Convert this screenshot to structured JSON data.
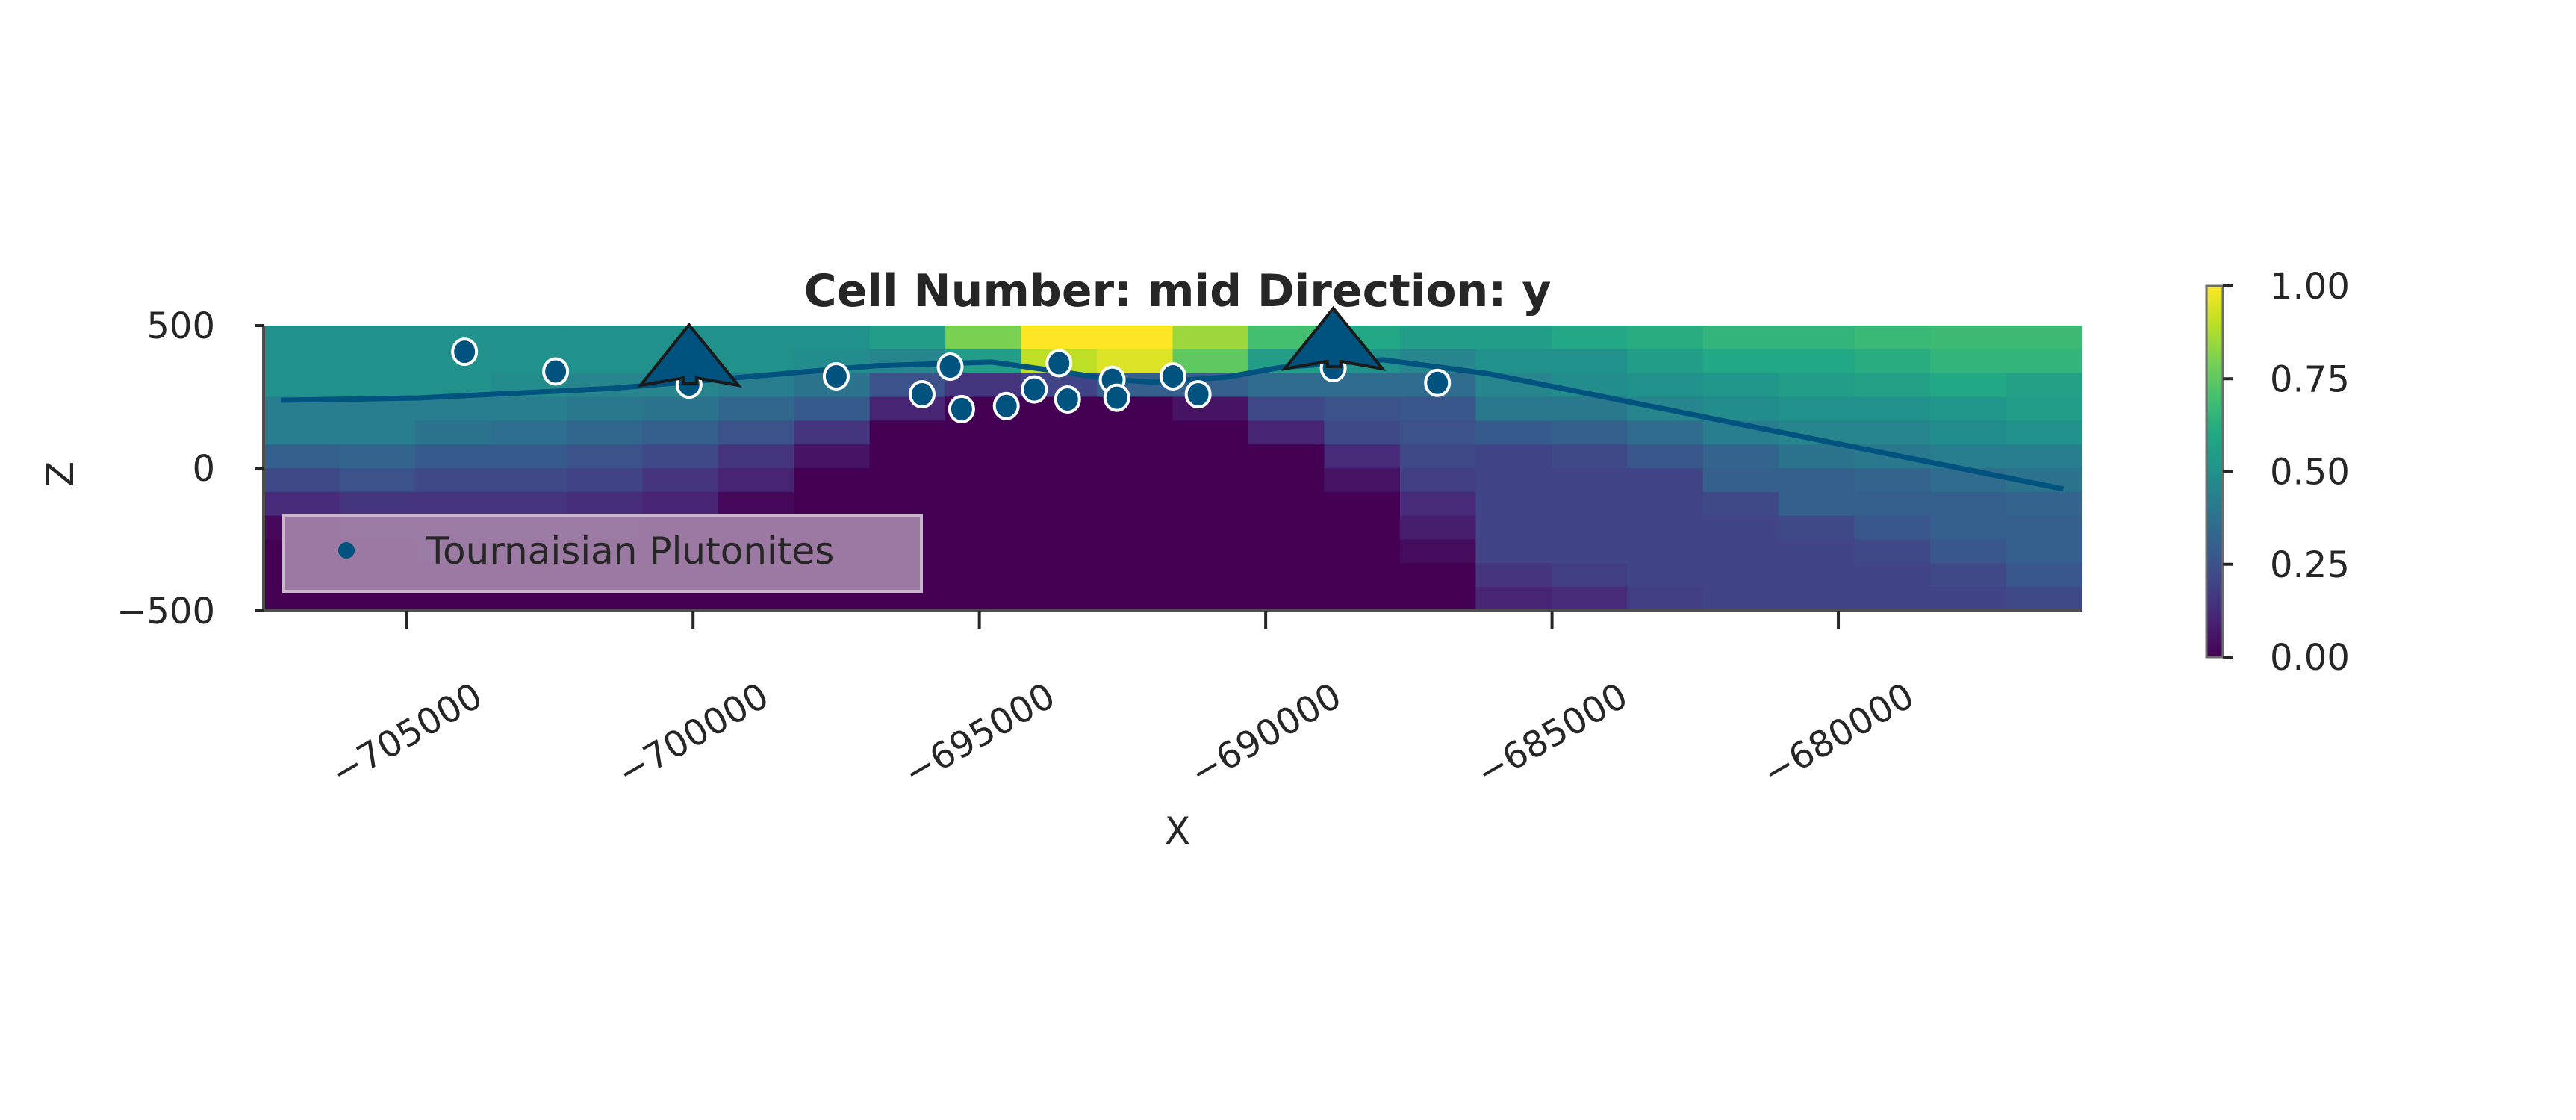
{
  "chart_data": {
    "type": "heatmap",
    "title": "Cell Number: mid Direction: y",
    "xlabel": "X",
    "ylabel": "Z",
    "xlim": [
      -707500,
      -675750
    ],
    "ylim": [
      -500,
      500
    ],
    "x_ticks": [
      -705000,
      -700000,
      -695000,
      -690000,
      -685000,
      -680000
    ],
    "x_tick_labels": [
      "−705000",
      "−700000",
      "−695000",
      "−690000",
      "−685000",
      "−680000"
    ],
    "y_ticks": [
      500,
      0,
      -500
    ],
    "y_tick_labels": [
      "500",
      "0",
      "−500"
    ],
    "colormap": "viridis",
    "colorbar": {
      "range": [
        0,
        1
      ],
      "ticks": [
        1.0,
        0.75,
        0.5,
        0.25,
        0.0
      ],
      "tick_labels": [
        "1.00",
        "0.75",
        "0.50",
        "0.25",
        "0.00"
      ]
    },
    "grid": false,
    "values_by_column_top_to_bottom": [
      [
        0.5,
        0.5,
        0.5,
        0.42,
        0.42,
        0.3,
        0.22,
        0.12,
        0.02,
        0,
        0,
        0
      ],
      [
        0.5,
        0.5,
        0.5,
        0.42,
        0.42,
        0.32,
        0.25,
        0.15,
        0.1,
        0,
        0,
        0
      ],
      [
        0.5,
        0.5,
        0.5,
        0.42,
        0.38,
        0.28,
        0.22,
        0.15,
        0.1,
        0.05,
        0,
        0
      ],
      [
        0.5,
        0.5,
        0.48,
        0.42,
        0.36,
        0.28,
        0.22,
        0.15,
        0.1,
        0.05,
        0,
        0
      ],
      [
        0.5,
        0.5,
        0.45,
        0.4,
        0.33,
        0.25,
        0.2,
        0.13,
        0.08,
        0,
        0,
        0
      ],
      [
        0.5,
        0.5,
        0.45,
        0.38,
        0.3,
        0.22,
        0.15,
        0.1,
        0.02,
        0,
        0,
        0
      ],
      [
        0.5,
        0.5,
        0.42,
        0.33,
        0.25,
        0.15,
        0.1,
        0.02,
        0,
        0,
        0,
        0
      ],
      [
        0.5,
        0.48,
        0.38,
        0.28,
        0.15,
        0.05,
        0,
        0,
        0,
        0,
        0,
        0
      ],
      [
        0.55,
        0.45,
        0.25,
        0.1,
        0,
        0,
        0,
        0,
        0,
        0,
        0,
        0
      ],
      [
        0.8,
        0.55,
        0.15,
        0,
        0,
        0,
        0,
        0,
        0,
        0,
        0,
        0
      ],
      [
        1,
        0.9,
        0.2,
        0,
        0,
        0,
        0,
        0,
        0,
        0,
        0,
        0
      ],
      [
        1,
        0.95,
        0.3,
        0,
        0,
        0,
        0,
        0,
        0,
        0,
        0,
        0
      ],
      [
        0.85,
        0.75,
        0.3,
        0.05,
        0,
        0,
        0,
        0,
        0,
        0,
        0,
        0
      ],
      [
        0.7,
        0.55,
        0.35,
        0.22,
        0.1,
        0,
        0,
        0,
        0,
        0,
        0,
        0
      ],
      [
        0.6,
        0.5,
        0.35,
        0.25,
        0.22,
        0.12,
        0.05,
        0,
        0,
        0,
        0,
        0
      ],
      [
        0.55,
        0.45,
        0.35,
        0.27,
        0.25,
        0.22,
        0.18,
        0.12,
        0.08,
        0.03,
        0,
        0
      ],
      [
        0.55,
        0.5,
        0.45,
        0.4,
        0.28,
        0.2,
        0.2,
        0.2,
        0.2,
        0.2,
        0.15,
        0.1
      ],
      [
        0.6,
        0.5,
        0.48,
        0.4,
        0.3,
        0.22,
        0.2,
        0.2,
        0.2,
        0.2,
        0.18,
        0.12
      ],
      [
        0.62,
        0.55,
        0.5,
        0.45,
        0.35,
        0.27,
        0.2,
        0.2,
        0.2,
        0.2,
        0.2,
        0.18
      ],
      [
        0.65,
        0.6,
        0.52,
        0.48,
        0.42,
        0.32,
        0.3,
        0.22,
        0.2,
        0.2,
        0.2,
        0.2
      ],
      [
        0.65,
        0.6,
        0.55,
        0.5,
        0.45,
        0.38,
        0.3,
        0.3,
        0.22,
        0.2,
        0.2,
        0.2
      ],
      [
        0.67,
        0.62,
        0.57,
        0.5,
        0.45,
        0.4,
        0.32,
        0.3,
        0.27,
        0.22,
        0.2,
        0.2
      ],
      [
        0.68,
        0.65,
        0.6,
        0.52,
        0.48,
        0.42,
        0.35,
        0.3,
        0.3,
        0.27,
        0.22,
        0.2
      ],
      [
        0.68,
        0.65,
        0.57,
        0.55,
        0.5,
        0.42,
        0.38,
        0.32,
        0.3,
        0.3,
        0.27,
        0.22
      ]
    ],
    "boundary_line": {
      "color": "#00537f",
      "points": [
        [
          -707200,
          238
        ],
        [
          -704800,
          246
        ],
        [
          -701390,
          280
        ],
        [
          -696820,
          359
        ],
        [
          -694790,
          372
        ],
        [
          -693560,
          338
        ],
        [
          -692740,
          312
        ],
        [
          -691920,
          301
        ],
        [
          -690690,
          319
        ],
        [
          -689740,
          353
        ],
        [
          -687955,
          380
        ],
        [
          -686130,
          332
        ],
        [
          -676070,
          -73
        ]
      ]
    },
    "series": [
      {
        "name": "Tournaisian Plutonites",
        "color": "#00537f",
        "marker": "circle",
        "points": [
          [
            -703990,
            408
          ],
          [
            -702400,
            339
          ],
          [
            -700070,
            293
          ],
          [
            -697500,
            322
          ],
          [
            -696000,
            259
          ],
          [
            -695510,
            356
          ],
          [
            -695310,
            207
          ],
          [
            -694530,
            218
          ],
          [
            -694040,
            276
          ],
          [
            -693610,
            368
          ],
          [
            -693460,
            241
          ],
          [
            -692680,
            310
          ],
          [
            -692600,
            247
          ],
          [
            -691620,
            322
          ],
          [
            -691180,
            259
          ],
          [
            -688820,
            351
          ],
          [
            -687000,
            299
          ]
        ]
      }
    ],
    "orientations": {
      "color": "#00537f",
      "marker": "arrow-up",
      "points": [
        [
          -700070,
          293
        ],
        [
          -688820,
          351
        ]
      ]
    },
    "legend": {
      "position": "lower-left",
      "entries": [
        "Tournaisian Plutonites"
      ],
      "background": "#a07fa7"
    }
  }
}
